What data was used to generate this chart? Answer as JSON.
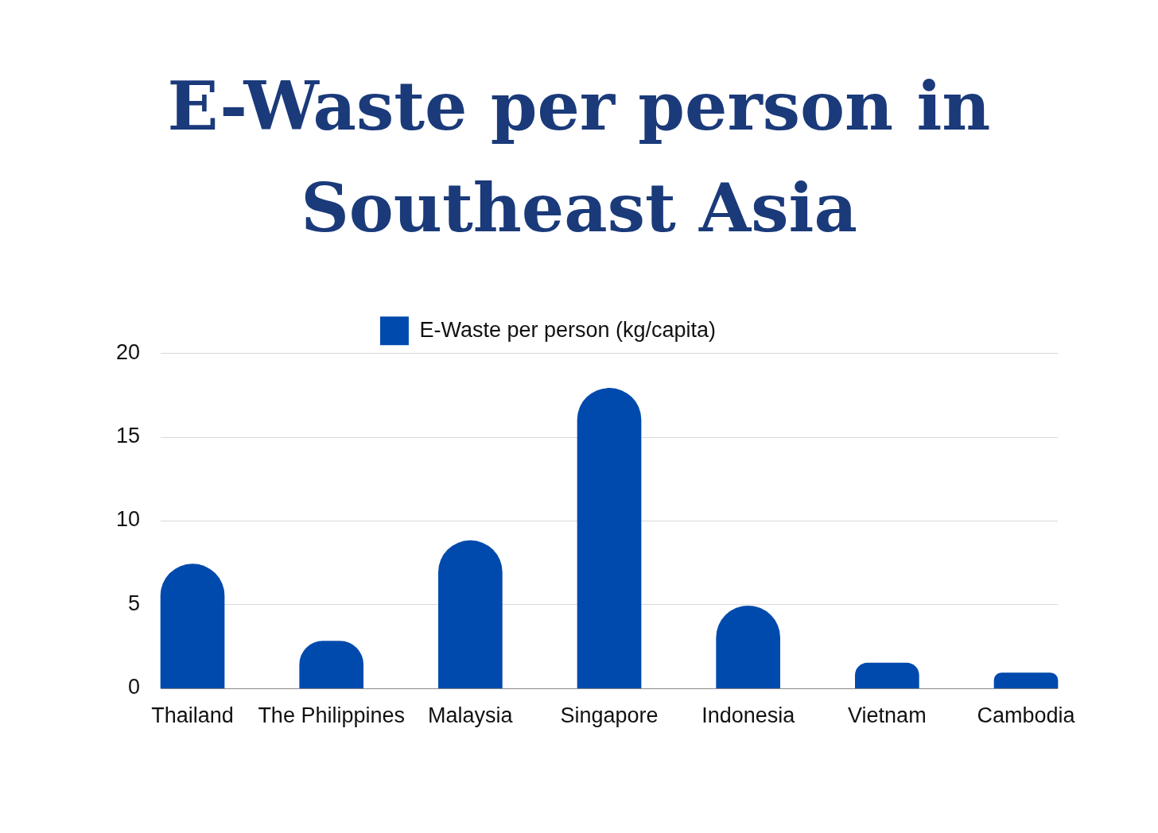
{
  "chart_data": {
    "type": "bar",
    "title": "E-Waste per person in Southeast Asia",
    "categories": [
      "Thailand",
      "The Philippines",
      "Malaysia",
      "Singapore",
      "Indonesia",
      "Vietnam",
      "Cambodia"
    ],
    "series": [
      {
        "name": "E-Waste per person (kg/capita)",
        "color": "#004aad",
        "values": [
          7.4,
          2.8,
          8.8,
          17.9,
          4.9,
          1.5,
          0.9
        ]
      }
    ],
    "ylim": [
      0,
      20
    ],
    "yticks": [
      0,
      5,
      10,
      15,
      20
    ],
    "grid": "y",
    "legend": "top"
  }
}
